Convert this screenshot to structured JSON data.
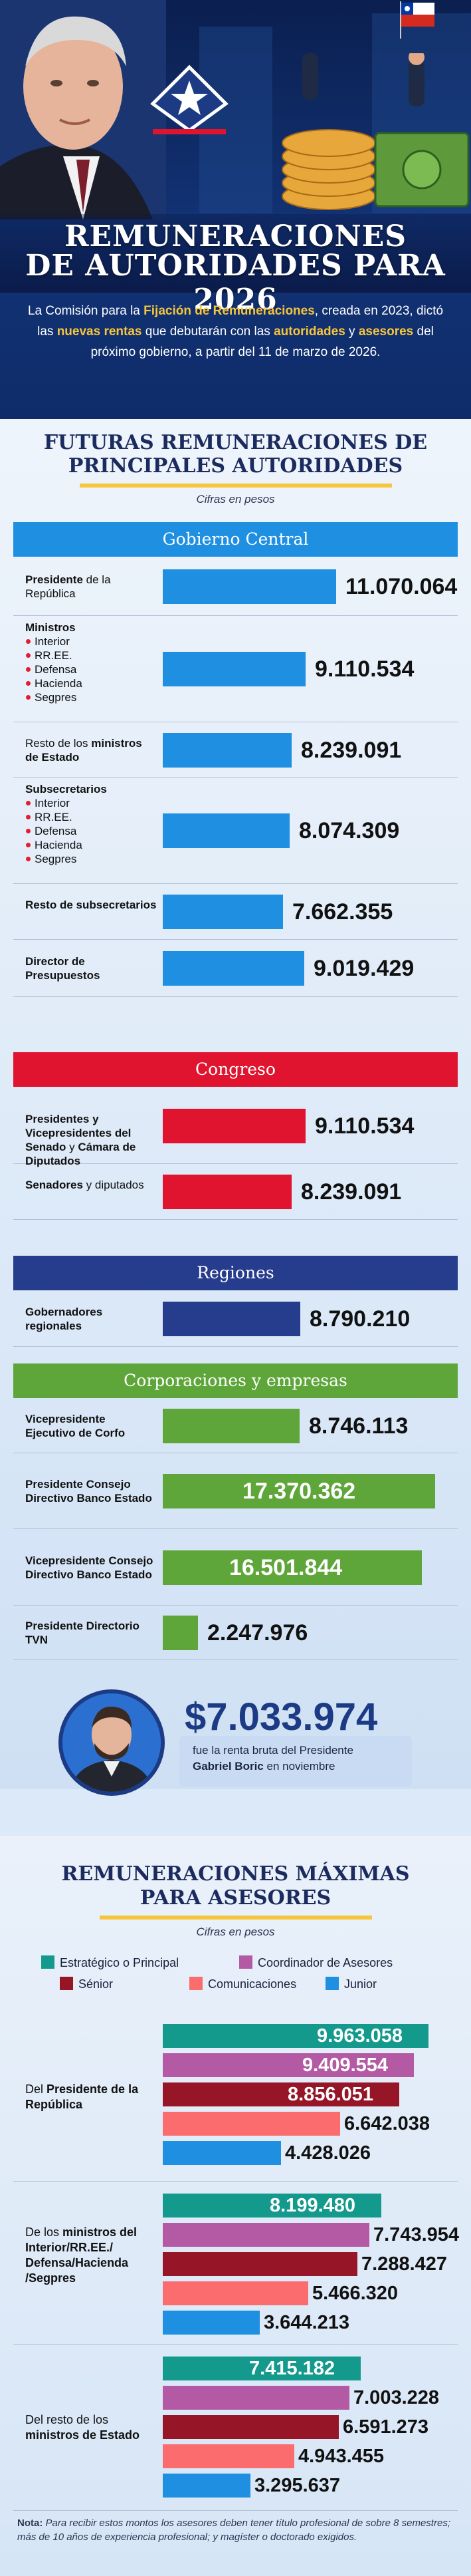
{
  "header": {
    "title_line1": "REMUNERACIONES",
    "title_line2": "DE AUTORIDADES PARA 2026",
    "intro_parts": [
      {
        "t": "La Comisión para la ",
        "h": false
      },
      {
        "t": "Fijación de Remuneraciones",
        "h": true
      },
      {
        "t": ", creada en 2023, dictó las ",
        "h": false
      },
      {
        "t": "nuevas rentas",
        "h": true
      },
      {
        "t": " que debutarán con las ",
        "h": false
      },
      {
        "t": "autoridades",
        "h": true
      },
      {
        "t": " y ",
        "h": false
      },
      {
        "t": "asesores",
        "h": true
      },
      {
        "t": " del próximo gobierno, a partir del 11 de marzo de 2026.",
        "h": false
      }
    ]
  },
  "section1": {
    "title_line1": "FUTURAS REMUNERACIONES DE",
    "title_line2": "PRINCIPALES AUTORIDADES",
    "subtitle": "Cifras en pesos"
  },
  "boric": {
    "amount": "$7.033.974",
    "text_pre": "fue la renta bruta del Presidente",
    "name": "Gabriel Boric",
    "text_post": " en noviembre"
  },
  "section2": {
    "title_line1": "REMUNERACIONES MÁXIMAS",
    "title_line2": "PARA ASESORES",
    "subtitle": "Cifras en pesos"
  },
  "note": {
    "label": "Nota:",
    "text": " Para recibir estos montos los asesores deben tener título profesional de sobre 8 semestres; más de 10 años de experiencia profesional; y magíster o doctorado exigidos."
  },
  "chart_data": [
    {
      "type": "bar",
      "title": "FUTURAS REMUNERACIONES DE PRINCIPALES AUTORIDADES",
      "subtitle": "Cifras en pesos",
      "groups": [
        {
          "name": "Gobierno Central",
          "color": "#1e8fe1",
          "items": [
            {
              "label_bold": "Presidente",
              "label_rest": " de la República",
              "bullets": [],
              "value": 11070064,
              "display": "11.070.064"
            },
            {
              "label_bold": "Ministros",
              "label_rest": "",
              "bullets": [
                "Interior",
                "RR.EE.",
                "Defensa",
                "Hacienda",
                "Segpres"
              ],
              "value": 9110534,
              "display": "9.110.534"
            },
            {
              "label_bold": "ministros de Estado",
              "label_pre": "Resto de los ",
              "label_rest": "",
              "bullets": [],
              "value": 8239091,
              "display": "8.239.091"
            },
            {
              "label_bold": "Subsecretarios",
              "label_rest": "",
              "bullets": [
                "Interior",
                "RR.EE.",
                "Defensa",
                "Hacienda",
                "Segpres"
              ],
              "value": 8074309,
              "display": "8.074.309"
            },
            {
              "label_bold": "Resto de subsecretarios",
              "label_rest": "",
              "bullets": [],
              "value": 7662355,
              "display": "7.662.355"
            },
            {
              "label_bold": "Director de Presupuestos",
              "label_rest": "",
              "bullets": [],
              "value": 9019429,
              "display": "9.019.429"
            }
          ]
        },
        {
          "name": "Congreso",
          "color": "#e0142f",
          "items": [
            {
              "label_bold": "Presidentes y Vicepresidentes del Senado",
              "label_rest": " y ",
              "label_bold2": "Cámara de Diputados",
              "bullets": [],
              "value": 9110534,
              "display": "9.110.534"
            },
            {
              "label_bold": "Senadores",
              "label_rest": " y diputados",
              "bullets": [],
              "value": 8239091,
              "display": "8.239.091"
            }
          ]
        },
        {
          "name": "Regiones",
          "color": "#263c8c",
          "items": [
            {
              "label_bold": "Gobernadores regionales",
              "label_rest": "",
              "bullets": [],
              "value": 8790210,
              "display": "8.790.210"
            }
          ]
        },
        {
          "name": "Corporaciones y empresas",
          "color": "#5fa63a",
          "items": [
            {
              "label_bold": "Vicepresidente Ejecutivo de Corfo",
              "label_rest": "",
              "bullets": [],
              "value": 8746113,
              "display": "8.746.113"
            },
            {
              "label_bold": "Presidente Consejo Directivo Banco Estado",
              "label_rest": "",
              "bullets": [],
              "value": 17370362,
              "display": "17.370.362"
            },
            {
              "label_bold": "Vicepresidente Consejo Directivo Banco Estado",
              "label_rest": "",
              "bullets": [],
              "value": 16501844,
              "display": "16.501.844"
            },
            {
              "label_bold": "Presidente Directorio TVN",
              "label_rest": "",
              "bullets": [],
              "value": 2247976,
              "display": "2.247.976"
            }
          ]
        }
      ]
    },
    {
      "type": "bar",
      "title": "REMUNERACIONES MÁXIMAS PARA ASESORES",
      "subtitle": "Cifras en pesos",
      "legend": [
        {
          "name": "Estratégico o Principal",
          "color": "#139a8c"
        },
        {
          "name": "Coordinador de Asesores",
          "color": "#b45aa5"
        },
        {
          "name": "Sénior",
          "color": "#961628"
        },
        {
          "name": "Comunicaciones",
          "color": "#fb6c6e"
        },
        {
          "name": "Junior",
          "color": "#1e8fe1"
        }
      ],
      "groups": [
        {
          "label_pre": "Del ",
          "label_bold": "Presidente de la República",
          "label_post": "",
          "values": [
            9963058,
            9409554,
            8856051,
            6642038,
            4428026
          ],
          "display": [
            "9.963.058",
            "9.409.554",
            "8.856.051",
            "6.642.038",
            "4.428.026"
          ]
        },
        {
          "label_pre": "De los ",
          "label_bold": "ministros del Interior/RR.EE./ Defensa/Hacienda /Segpres",
          "label_post": "",
          "values": [
            8199480,
            7743954,
            7288427,
            5466320,
            3644213
          ],
          "display": [
            "8.199.480",
            "7.743.954",
            "7.288.427",
            "5.466.320",
            "3.644.213"
          ]
        },
        {
          "label_pre": "Del resto de los ",
          "label_bold": "ministros de Estado",
          "label_post": "",
          "values": [
            7415182,
            7003228,
            6591273,
            4943455,
            3295637
          ],
          "display": [
            "7.415.182",
            "7.003.228",
            "6.591.273",
            "4.943.455",
            "3.295.637"
          ]
        }
      ]
    }
  ]
}
